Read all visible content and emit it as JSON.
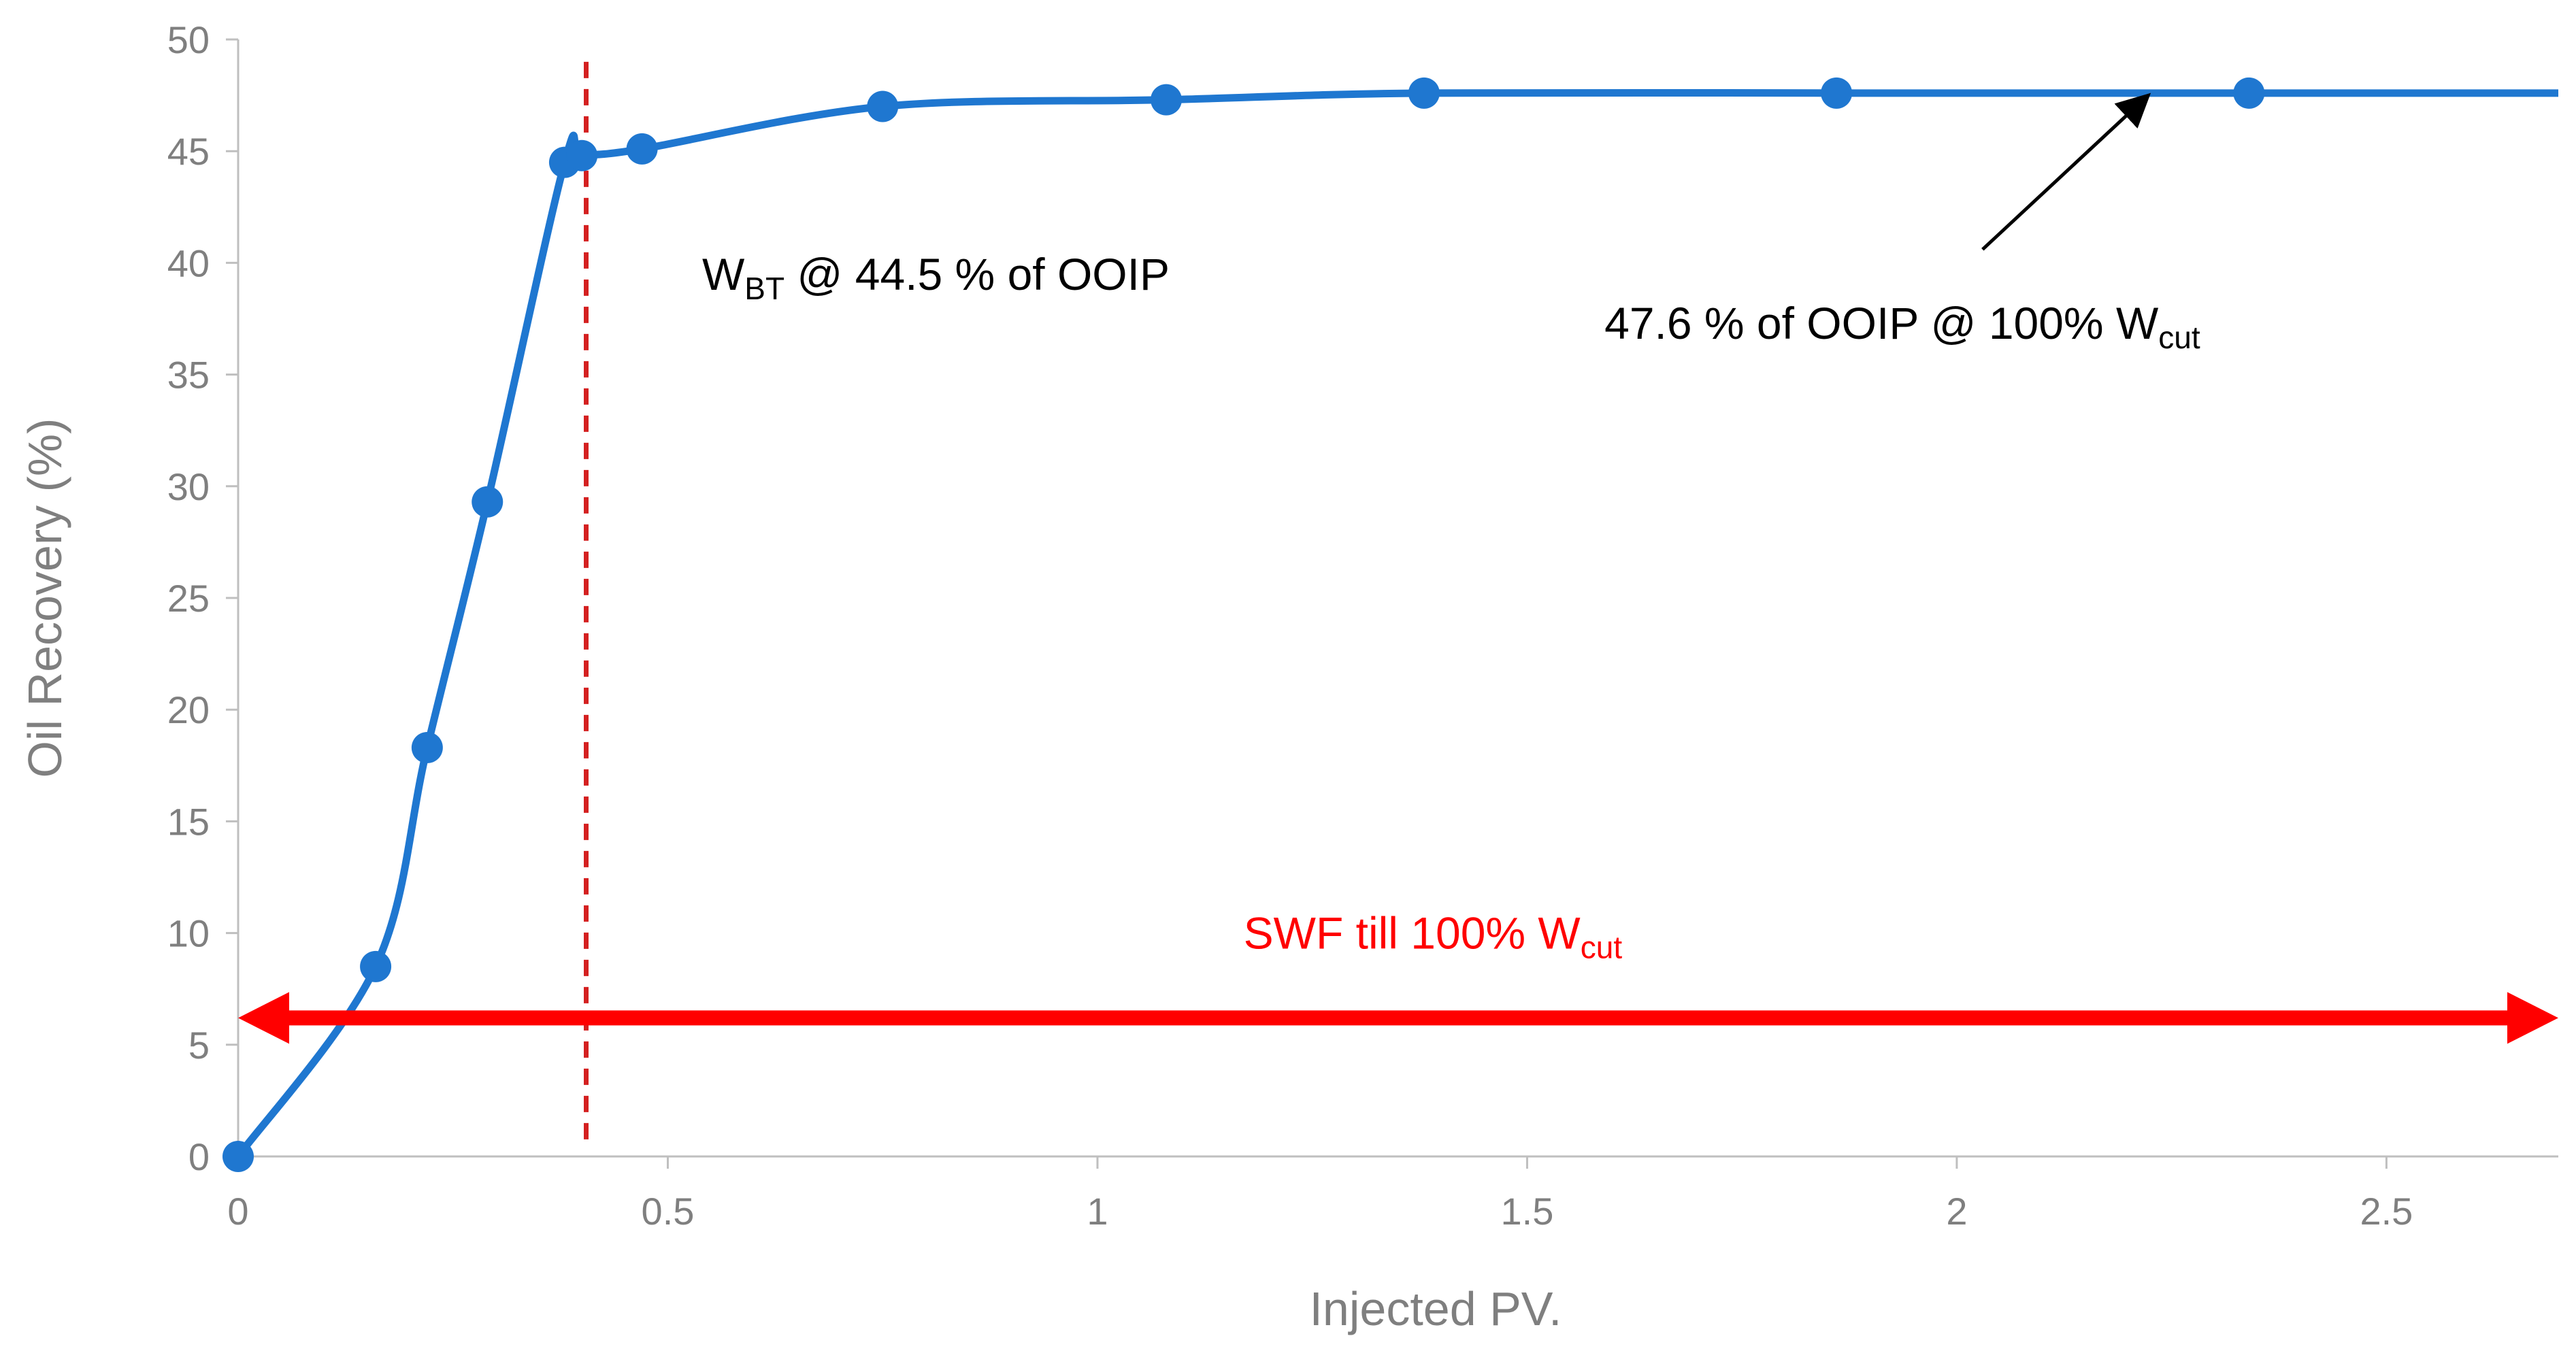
{
  "chart_data": {
    "type": "line",
    "xlabel": "Injected PV.",
    "ylabel": "Oil Recovery (%)",
    "xlim": [
      0,
      2.7
    ],
    "ylim": [
      0,
      50
    ],
    "xticks": [
      0,
      0.5,
      1,
      1.5,
      2,
      2.5
    ],
    "xtick_labels": [
      "0",
      "0.5",
      "1",
      "1.5",
      "2",
      "2.5"
    ],
    "yticks": [
      0,
      5,
      10,
      15,
      20,
      25,
      30,
      35,
      40,
      45,
      50
    ],
    "ytick_labels": [
      "0",
      "5",
      "10",
      "15",
      "20",
      "25",
      "30",
      "35",
      "40",
      "45",
      "50"
    ],
    "grid": false,
    "series": [
      {
        "name": "Oil Recovery",
        "color": "#1f77d0",
        "x": [
          0,
          0.16,
          0.22,
          0.29,
          0.38,
          0.4,
          0.47,
          0.75,
          1.08,
          1.38,
          1.86,
          2.34,
          2.7
        ],
        "y": [
          0,
          8.5,
          18.3,
          29.3,
          44.5,
          44.8,
          45.1,
          47.0,
          47.3,
          47.6,
          47.6,
          47.6,
          47.6
        ],
        "markers": [
          true,
          true,
          true,
          true,
          true,
          true,
          true,
          true,
          true,
          true,
          true,
          true,
          false
        ]
      }
    ],
    "breakthrough_line": {
      "x": 0.405,
      "y_range": [
        0.6,
        49
      ],
      "color": "#d42020",
      "style": "dashed"
    },
    "annotations": {
      "wbt": {
        "main": "W",
        "sub": "BT",
        "rest": " @ 44.5 % of OOIP",
        "anchor": [
          0.54,
          38.8
        ]
      },
      "final": {
        "main": "47.6 % of OOIP @ 100% W",
        "sub": "cut",
        "anchor": [
          1.59,
          36.6
        ]
      },
      "swf": {
        "main": "SWF till 100% W",
        "sub": "cut",
        "anchor": [
          1.17,
          9.3
        ],
        "color": "#ff0000"
      }
    },
    "arrows": {
      "final_arrow": {
        "from": [
          2.03,
          40.6
        ],
        "to": [
          2.22,
          47.4
        ],
        "color": "#000000"
      },
      "swf_double_arrow": {
        "from": [
          0.0,
          6.2
        ],
        "to": [
          2.7,
          6.2
        ],
        "color": "#ff0000"
      }
    }
  }
}
